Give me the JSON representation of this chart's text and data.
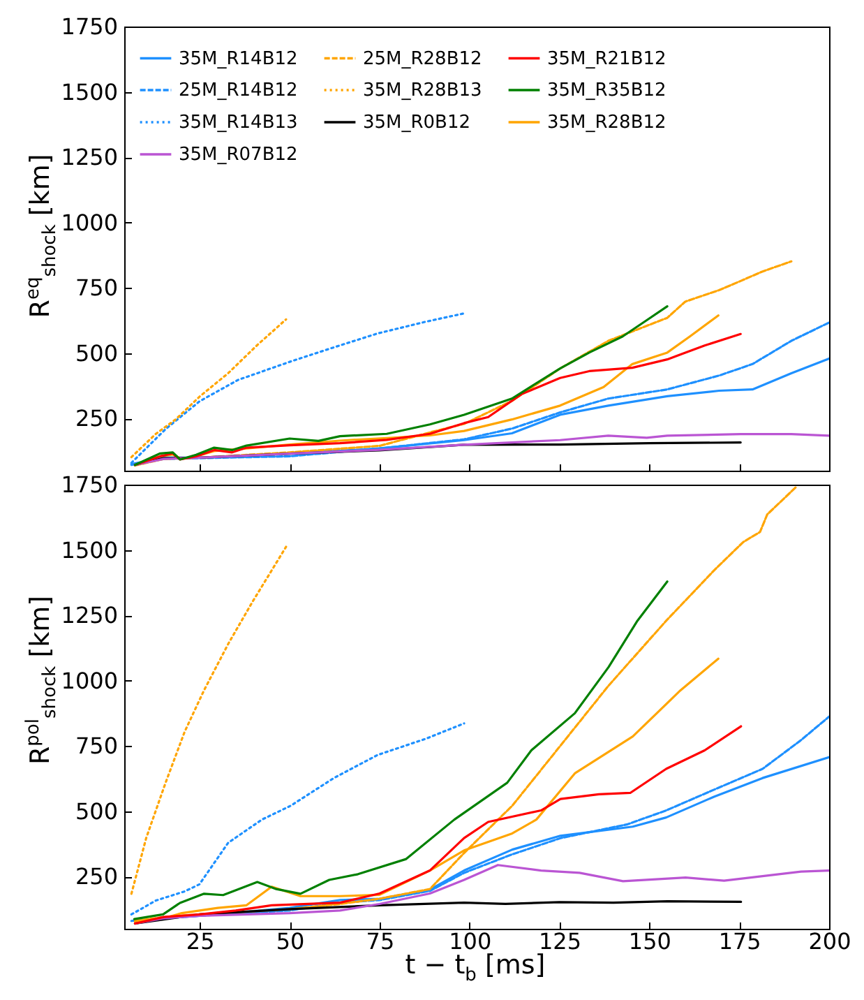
{
  "chart_data": [
    {
      "type": "line",
      "ylabel": "R$^{eq}$$_{shock}$ [km]",
      "xlim": [
        4,
        200
      ],
      "ylim": [
        50,
        1750
      ],
      "xticks": [
        25,
        50,
        75,
        100,
        125,
        150,
        175,
        200
      ],
      "yticks": [
        250,
        500,
        750,
        1000,
        1250,
        1500,
        1750
      ],
      "tick_labels": "y",
      "grid": false,
      "legend": "top left",
      "series": [
        {
          "name": "35M_R14B12",
          "color": "#1e90ff",
          "line_style": "solid",
          "x": [
            6,
            15,
            25,
            50,
            75,
            98.5,
            111.8,
            125.2,
            138.6,
            155,
            169.4,
            178.7,
            189.5,
            200
          ],
          "values": [
            75,
            100,
            100,
            115,
            135,
            167,
            193,
            264,
            299,
            335,
            356,
            361,
            423,
            479
          ]
        },
        {
          "name": "25M_R14B12",
          "color": "#1e90ff",
          "line_style": "dashed",
          "x": [
            6,
            15,
            25,
            50,
            75,
            98.5,
            111.8,
            125.2,
            138.6,
            155,
            169.4,
            178.7,
            189.5,
            200
          ],
          "values": [
            72,
            95,
            98,
            105,
            135,
            170,
            211,
            273,
            326,
            361,
            414,
            458,
            547,
            617
          ]
        },
        {
          "name": "35M_R14B13",
          "color": "#1e90ff",
          "line_style": "dotted",
          "x": [
            6,
            15.5,
            25,
            35.6,
            50.3,
            62.3,
            74.4,
            87.8,
            98.5
          ],
          "values": [
            80,
            209,
            316,
            397,
            468,
            522,
            575,
            620,
            652
          ]
        },
        {
          "name": "35M_R28B12",
          "color": "#ffa500",
          "line_style": "solid",
          "x": [
            7,
            14,
            17.5,
            20,
            24,
            29,
            38,
            50,
            64,
            77,
            89,
            98.5,
            111.8,
            125.2,
            137.3,
            145.3,
            155,
            161.3,
            169.2
          ],
          "values": [
            72,
            105,
            112,
            95,
            105,
            125,
            135,
            150,
            165,
            175,
            185,
            202,
            246,
            299,
            370,
            458,
            502,
            564,
            644
          ]
        },
        {
          "name": "25M_R28B12",
          "color": "#ffa500",
          "line_style": "dashed",
          "x": [
            7,
            15,
            25,
            50,
            75,
            90,
            98.5,
            111.8,
            125.2,
            138.6,
            155,
            160,
            169.4,
            175.4,
            181.4,
            189.5
          ],
          "values": [
            70,
            95,
            100,
            120,
            145,
            200,
            229,
            317,
            441,
            547,
            635,
            697,
            741,
            776,
            812,
            851
          ]
        },
        {
          "name": "35M_R28B13",
          "color": "#ffa500",
          "line_style": "dotted",
          "x": [
            6,
            12.8,
            18.2,
            25,
            32.9,
            41,
            49
          ],
          "values": [
            102,
            191,
            245,
            334,
            423,
            531,
            629
          ]
        },
        {
          "name": "35M_R0B12",
          "color": "#000000",
          "line_style": "solid",
          "x": [
            7,
            15,
            25,
            50,
            75,
            98.5,
            125.2,
            150,
            175.4
          ],
          "values": [
            72,
            98,
            100,
            115,
            128,
            149,
            150,
            155,
            158
          ]
        },
        {
          "name": "35M_R07B12",
          "color": "#ba55d3",
          "line_style": "solid",
          "x": [
            7,
            15,
            25,
            50,
            75,
            98.5,
            125.2,
            138.6,
            149.3,
            155,
            175.4,
            189.5,
            200
          ],
          "values": [
            72,
            95,
            100,
            115,
            130,
            149,
            167,
            184,
            176,
            184,
            190,
            190,
            184
          ]
        },
        {
          "name": "35M_R21B12",
          "color": "#ff0000",
          "line_style": "solid",
          "x": [
            7,
            14,
            17.5,
            19.5,
            24,
            29,
            34,
            38,
            50,
            64,
            77,
            89,
            98.5,
            105.2,
            114.5,
            125.2,
            133.3,
            145.3,
            155,
            165.4,
            175.4
          ],
          "values": [
            72,
            105,
            116,
            93,
            105,
            129,
            120,
            138,
            147,
            155,
            168,
            191,
            232,
            255,
            343,
            405,
            431,
            444,
            476,
            529,
            573
          ]
        },
        {
          "name": "35M_R35B12",
          "color": "#008000",
          "line_style": "solid",
          "x": [
            7,
            14,
            17.5,
            19.5,
            24,
            29,
            34,
            38,
            50,
            58,
            64,
            77,
            89,
            98.5,
            111.8,
            125.2,
            133.3,
            142.6,
            149.3,
            155
          ],
          "values": [
            72,
            116,
            120,
            93,
            111,
            138,
            129,
            146,
            173,
            164,
            182,
            191,
            227,
            264,
            326,
            441,
            502,
            564,
            626,
            679
          ]
        }
      ]
    },
    {
      "type": "line",
      "xlabel": "t − t$_{b}$ [ms]",
      "ylabel": "R$^{pol}$$_{shock}$ [km]",
      "xlim": [
        4,
        200
      ],
      "ylim": [
        50,
        1750
      ],
      "xticks": [
        25,
        50,
        75,
        100,
        125,
        150,
        175,
        200
      ],
      "yticks": [
        250,
        500,
        750,
        1000,
        1250,
        1500,
        1750
      ],
      "grid": false,
      "series": [
        {
          "color": "#1e90ff",
          "line_style": "solid",
          "x": [
            7,
            15,
            25,
            50,
            64,
            75,
            89,
            98.5,
            111.9,
            125.3,
            145.4,
            154.7,
            168.1,
            181.5,
            200
          ],
          "values": [
            70,
            90,
            100,
            130,
            160,
            165,
            200,
            273,
            353,
            406,
            441,
            476,
            556,
            627,
            707
          ]
        },
        {
          "color": "#1e90ff",
          "line_style": "dashed",
          "x": [
            6,
            15,
            25,
            50,
            64,
            75,
            89,
            98.5,
            111.9,
            125.3,
            144,
            154.7,
            168.1,
            181.5,
            192,
            200
          ],
          "values": [
            80,
            90,
            100,
            120,
            150,
            160,
            195,
            264,
            335,
            397,
            450,
            503,
            583,
            662,
            770,
            862
          ]
        },
        {
          "color": "#1e90ff",
          "line_style": "dotted",
          "x": [
            6,
            12.8,
            20.8,
            24.9,
            32.9,
            42.3,
            50.3,
            62.3,
            74.4,
            87.8,
            98.5
          ],
          "values": [
            105,
            158,
            193,
            220,
            379,
            468,
            521,
            627,
            715,
            777,
            836
          ]
        },
        {
          "color": "#ffa500",
          "line_style": "solid",
          "x": [
            7,
            15,
            20,
            30,
            38,
            45,
            53,
            64,
            75,
            89,
            98.5,
            111.9,
            118.6,
            129.3,
            145.4,
            158.7,
            169.2
          ],
          "values": [
            75,
            90,
            110,
            130,
            140,
            211,
            175,
            175,
            180,
            273,
            350,
            415,
            468,
            645,
            786,
            963,
            1084
          ]
        },
        {
          "color": "#ffa500",
          "line_style": "dashed",
          "x": [
            7,
            15,
            25,
            50,
            64,
            75,
            89,
            98.5,
            111.9,
            125.3,
            138.7,
            154.7,
            168.1,
            176.1,
            180.8,
            182.8,
            190.9
          ],
          "values": [
            80,
            95,
            105,
            125,
            145,
            165,
            202,
            340,
            521,
            751,
            981,
            1229,
            1423,
            1530,
            1569,
            1636,
            1742
          ]
        },
        {
          "color": "#ffa500",
          "line_style": "dotted",
          "x": [
            6,
            10.1,
            15.5,
            20.8,
            26.2,
            32.9,
            39.6,
            49
          ],
          "values": [
            184,
            397,
            609,
            804,
            963,
            1140,
            1300,
            1512
          ]
        },
        {
          "color": "#000000",
          "line_style": "solid",
          "x": [
            7,
            25,
            50,
            75,
            98.5,
            110,
            125,
            140,
            155,
            175.5
          ],
          "values": [
            70,
            105,
            125,
            140,
            150,
            145,
            152,
            150,
            155,
            153
          ]
        },
        {
          "color": "#ba55d3",
          "line_style": "solid",
          "x": [
            7,
            15,
            25,
            50,
            64,
            75,
            89,
            98.5,
            107.9,
            119.9,
            130.6,
            142.7,
            160.1,
            170.8,
            192.2,
            200
          ],
          "values": [
            70,
            90,
            100,
            110,
            120,
            145,
            185,
            237,
            294,
            273,
            264,
            232,
            246,
            234,
            269,
            273
          ]
        },
        {
          "color": "#ff0000",
          "line_style": "solid",
          "x": [
            7,
            15,
            25,
            35,
            45,
            64,
            75,
            89,
            98.5,
            105.2,
            119.9,
            125.3,
            136,
            144.7,
            154.7,
            165.4,
            175.5
          ],
          "values": [
            70,
            95,
            105,
            120,
            140,
            150,
            185,
            273,
            397,
            459,
            503,
            547,
            565,
            570,
            662,
            733,
            825
          ]
        },
        {
          "color": "#008000",
          "line_style": "solid",
          "x": [
            6.8,
            14.8,
            19.5,
            26.2,
            31.5,
            41,
            46.3,
            53,
            61,
            69,
            82.4,
            95.8,
            110.5,
            117.2,
            129.3,
            138.7,
            146.7,
            155
          ],
          "values": [
            87,
            105,
            149,
            184,
            179,
            229,
            202,
            184,
            237,
            259,
            317,
            468,
            609,
            733,
            875,
            1052,
            1229,
            1379
          ]
        }
      ]
    }
  ]
}
